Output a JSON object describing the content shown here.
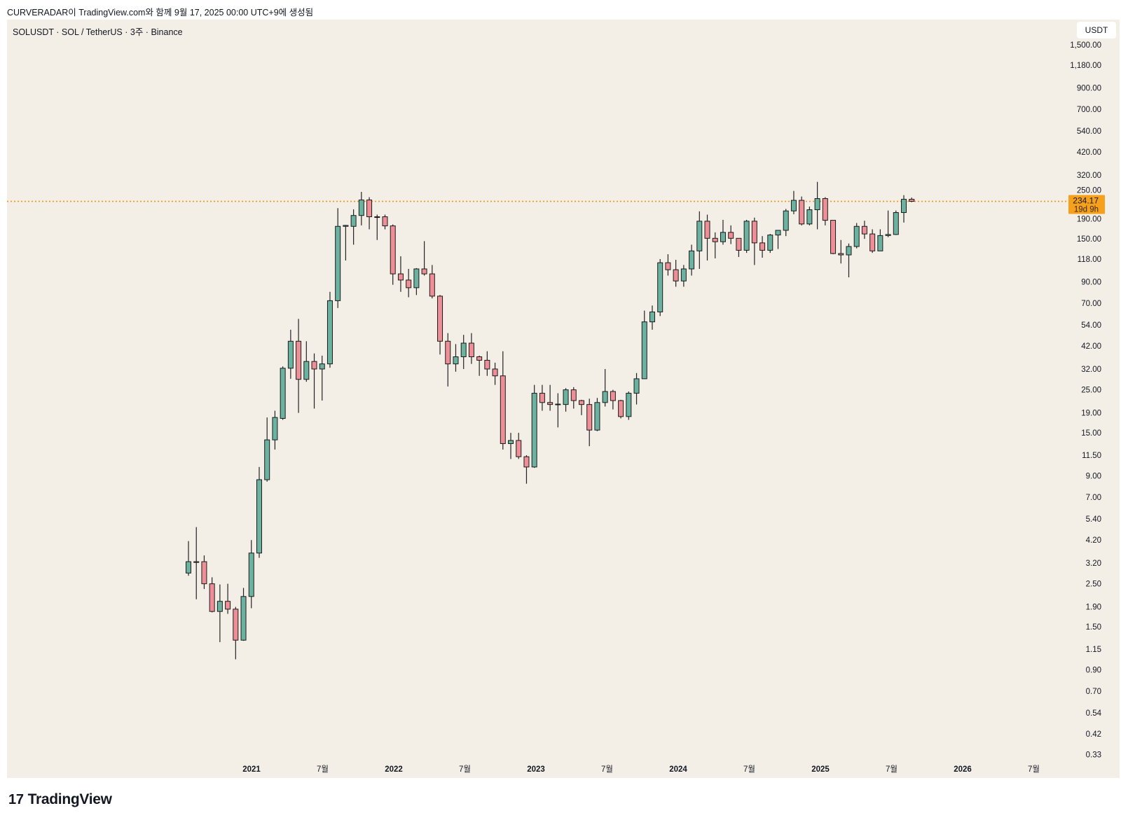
{
  "caption": "CURVERADAR이 TradingView.com와 함께 9월 17, 2025 00:00 UTC+9에 생성됨",
  "header": {
    "symbol_line": "SOLUSDT · SOL / TetherUS · 3주 · Binance",
    "currency_button": "USDT"
  },
  "footer": {
    "logo_text": "TradingView",
    "logo_mark": "17"
  },
  "colors": {
    "up": "#6bb3a0",
    "down": "#ee8f97",
    "border": "#1b1b1b",
    "price_line": "#f7931a",
    "background": "#f3efe7"
  },
  "chart_data": {
    "type": "candlestick",
    "title": "SOLUSDT · SOL / TetherUS · 3주 · Binance",
    "scale": "log",
    "ylim": [
      0.33,
      1500
    ],
    "y_ticks": [
      "1,500.00",
      "1,180.00",
      "900.00",
      "700.00",
      "540.00",
      "420.00",
      "320.00",
      "250.00",
      "190.00",
      "150.00",
      "118.00",
      "90.00",
      "70.00",
      "54.00",
      "42.00",
      "32.00",
      "25.00",
      "19.00",
      "15.00",
      "11.50",
      "9.00",
      "7.00",
      "5.40",
      "4.20",
      "3.20",
      "2.50",
      "1.90",
      "1.50",
      "1.15",
      "0.90",
      "0.70",
      "0.54",
      "0.42",
      "0.33"
    ],
    "x_ticks": [
      "2021",
      "7월",
      "2022",
      "7월",
      "2023",
      "7월",
      "2024",
      "7월",
      "2025",
      "7월",
      "2026",
      "7월"
    ],
    "last_price": {
      "value": 234.17,
      "label": "234.17",
      "countdown": "19d 9h"
    },
    "ohlc": [
      [
        2.84,
        4.15,
        2.75,
        3.25
      ],
      [
        3.25,
        4.9,
        2.08,
        3.22
      ],
      [
        3.25,
        3.5,
        2.35,
        2.5
      ],
      [
        2.5,
        2.7,
        1.78,
        1.8
      ],
      [
        1.8,
        2.48,
        1.25,
        2.03
      ],
      [
        2.03,
        2.5,
        1.75,
        1.85
      ],
      [
        1.85,
        1.9,
        1.02,
        1.28
      ],
      [
        1.28,
        2.38,
        1.27,
        2.15
      ],
      [
        2.15,
        4.2,
        1.87,
        3.6
      ],
      [
        3.6,
        10,
        3.4,
        8.6
      ],
      [
        8.6,
        18,
        8.4,
        13.8
      ],
      [
        13.8,
        19.5,
        12.3,
        18.0
      ],
      [
        17.8,
        33,
        17.5,
        32.3
      ],
      [
        32.3,
        51,
        28.5,
        44.5
      ],
      [
        44.5,
        58,
        19,
        28.3
      ],
      [
        28.3,
        44.5,
        27.5,
        35
      ],
      [
        35,
        38.5,
        20,
        32
      ],
      [
        32,
        37.5,
        22,
        34
      ],
      [
        34,
        80,
        32.5,
        72
      ],
      [
        72,
        216,
        66,
        174
      ],
      [
        174,
        177,
        116,
        176
      ],
      [
        174,
        213,
        140,
        198
      ],
      [
        198,
        262,
        176,
        238
      ],
      [
        238,
        246,
        168,
        195
      ],
      [
        195,
        200,
        148,
        195
      ],
      [
        195,
        200,
        168,
        175
      ],
      [
        175,
        178,
        87,
        99
      ],
      [
        99,
        122,
        80,
        92
      ],
      [
        92,
        105,
        75,
        84
      ],
      [
        84,
        106,
        77,
        105
      ],
      [
        105,
        146,
        97,
        99
      ],
      [
        99,
        110,
        74,
        76
      ],
      [
        76,
        77,
        38,
        44.5
      ],
      [
        44.5,
        49,
        26,
        34
      ],
      [
        34,
        43,
        31,
        37
      ],
      [
        37,
        48,
        32,
        43.5
      ],
      [
        43.5,
        49,
        34,
        37
      ],
      [
        37,
        37.5,
        29.5,
        35.5
      ],
      [
        35.5,
        39.5,
        29.5,
        32
      ],
      [
        32,
        34.5,
        26.5,
        29.5
      ],
      [
        29.5,
        39.5,
        12.3,
        13.2
      ],
      [
        13.2,
        15,
        11,
        13.7
      ],
      [
        13.7,
        15,
        11,
        11.3
      ],
      [
        11.3,
        11.5,
        8.2,
        10.0
      ],
      [
        10.0,
        26.5,
        9.9,
        24
      ],
      [
        24,
        26.5,
        19.5,
        21.5
      ],
      [
        21.5,
        26.5,
        19.5,
        21
      ],
      [
        21,
        24,
        16,
        21.1
      ],
      [
        21,
        25.5,
        19.3,
        25
      ],
      [
        25,
        25.8,
        20,
        22
      ],
      [
        22,
        22.2,
        18.5,
        21
      ],
      [
        21,
        22.5,
        12.8,
        15.5
      ],
      [
        15.5,
        22.7,
        15.3,
        21.5
      ],
      [
        21.5,
        32,
        20.5,
        24.5
      ],
      [
        24.5,
        25,
        19.8,
        22
      ],
      [
        22,
        22.2,
        17.8,
        18.2
      ],
      [
        18.2,
        24.5,
        17.5,
        24
      ],
      [
        24,
        30.5,
        21,
        28.5
      ],
      [
        28.5,
        64,
        28.5,
        56
      ],
      [
        56,
        68,
        51,
        63
      ],
      [
        63,
        118,
        60,
        113
      ],
      [
        113,
        125,
        97,
        104
      ],
      [
        104,
        117,
        85,
        91
      ],
      [
        91,
        110,
        85,
        105
      ],
      [
        105,
        140,
        97,
        130
      ],
      [
        130,
        208,
        105,
        185
      ],
      [
        185,
        200,
        116,
        151
      ],
      [
        151,
        162,
        119,
        145
      ],
      [
        145,
        188,
        140,
        162
      ],
      [
        162,
        176,
        141,
        151
      ],
      [
        151,
        151,
        121,
        131
      ],
      [
        131,
        188,
        127,
        185
      ],
      [
        185,
        193,
        110,
        143
      ],
      [
        143,
        155,
        120,
        131
      ],
      [
        131,
        159,
        127,
        157
      ],
      [
        157,
        166,
        133,
        166
      ],
      [
        166,
        214,
        155,
        209
      ],
      [
        209,
        265,
        201,
        237
      ],
      [
        237,
        248,
        176,
        179
      ],
      [
        179,
        220,
        176,
        212
      ],
      [
        212,
        295,
        168,
        242
      ],
      [
        242,
        246,
        176,
        187
      ],
      [
        187,
        187,
        125,
        126
      ],
      [
        126,
        148,
        112,
        124
      ],
      [
        124,
        142,
        95,
        137
      ],
      [
        137,
        181,
        134,
        174
      ],
      [
        174,
        186,
        150,
        159
      ],
      [
        159,
        168,
        127,
        130
      ],
      [
        130,
        168,
        130,
        156
      ],
      [
        156,
        210,
        153,
        158
      ],
      [
        158,
        210,
        157,
        205
      ],
      [
        205,
        252,
        182,
        240
      ],
      [
        240,
        245,
        232,
        234.17
      ]
    ]
  }
}
